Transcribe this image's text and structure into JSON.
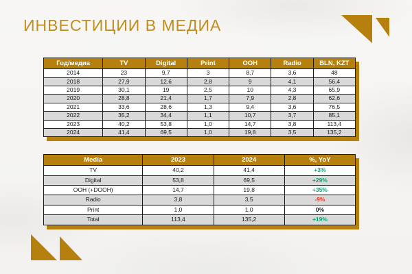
{
  "page": {
    "title": "ИНВЕСТИЦИИ В МЕДИА"
  },
  "colors": {
    "accent": "#B5800E",
    "title_text": "#C08D1E",
    "positive": "#00A878",
    "negative": "#EB3323",
    "row_alt": "#D9D9D9",
    "header_text": "#FFFFFF",
    "cell_text": "#1A1A1A"
  },
  "icons": {
    "top_right_logo": "double-triangle-mark",
    "bottom_left_logo": "double-triangle-mark"
  },
  "investments_table": {
    "headers": [
      "Год/медиа",
      "TV",
      "Digital",
      "Print",
      "OOH",
      "Radio",
      "BLN, KZT"
    ],
    "rows": [
      [
        "2014",
        "23",
        "9,7",
        "3",
        "8,7",
        "3,6",
        "48"
      ],
      [
        "2018",
        "27,9",
        "12,6",
        "2,8",
        "9",
        "4,1",
        "56,4"
      ],
      [
        "2019",
        "30,1",
        "19",
        "2,5",
        "10",
        "4,3",
        "65,9"
      ],
      [
        "2020",
        "28,8",
        "21,4",
        "1,7",
        "7,9",
        "2,8",
        "62,6"
      ],
      [
        "2021",
        "33,6",
        "28,6",
        "1,3",
        "9,4",
        "3,6",
        "76,5"
      ],
      [
        "2022",
        "35,2",
        "34,4",
        "1,1",
        "10,7",
        "3,7",
        "85,1"
      ],
      [
        "2023",
        "40,2",
        "53,8",
        "1,0",
        "14,7",
        "3,8",
        "113,4"
      ],
      [
        "2024",
        "41,4",
        "69,5",
        "1,0",
        "19,8",
        "3,5",
        "135,2"
      ]
    ]
  },
  "yoy_table": {
    "headers": [
      "Media",
      "2023",
      "2024",
      "%, YoY"
    ],
    "rows": [
      [
        "TV",
        "40,2",
        "41,4",
        "+3%"
      ],
      [
        "Digital",
        "53,8",
        "69,5",
        "+29%"
      ],
      [
        "OOH (+DOOH)",
        "14,7",
        "19,8",
        "+35%"
      ],
      [
        "Radio",
        "3,8",
        "3,5",
        "-9%"
      ],
      [
        "Print",
        "1,0",
        "1,0",
        "0%"
      ],
      [
        "Total",
        "113,4",
        "135,2",
        "+19%"
      ]
    ]
  }
}
